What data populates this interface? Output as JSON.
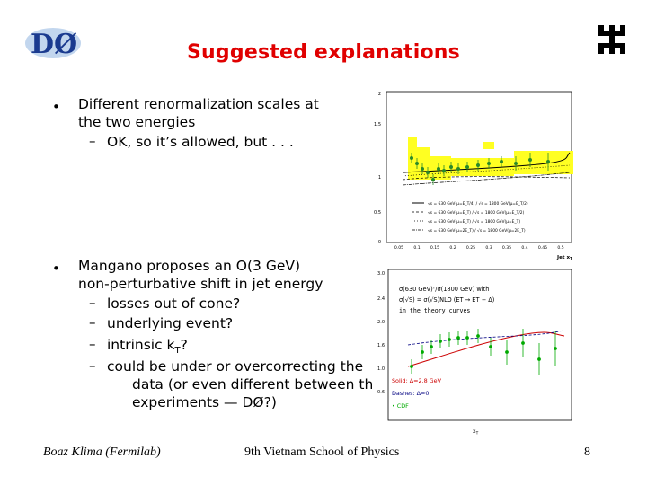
{
  "slide": {
    "title": "Suggested explanations",
    "logo_left_text": "DØ",
    "bullets": [
      {
        "line1": "Different renormalization scales at",
        "line2": "the two energies",
        "sub": [
          "OK, so it’s allowed, but . . ."
        ]
      },
      {
        "line1": "Mangano proposes an O(3 GeV)",
        "line2": "non-perturbative shift in jet energy",
        "sub": [
          "losses out of cone?",
          "underlying event?",
          "intrinsic k",
          "could be under or overcorrecting the",
          "data (or even different between the",
          "experiments — DØ?)"
        ],
        "kt_sub": "T",
        "kt_suffix": "?"
      }
    ],
    "footer": {
      "author": "Boaz Klima (Fermilab)",
      "event": "9th Vietnam School of Physics",
      "page": "8"
    },
    "dash": "–",
    "bullet_glyph": "•"
  },
  "plot1": {
    "xlabel": "Jet x",
    "xlabel_sub": "T",
    "yticks": [
      "2",
      "1.5",
      "1",
      "0.5",
      "0"
    ],
    "xticks": [
      "0.05",
      "0.1",
      "0.15",
      "0.2",
      "0.25",
      "0.3",
      "0.35",
      "0.4",
      "0.45",
      "0.5"
    ],
    "legend": [
      "√s = 630 GeV(μ=E_T/4) / √s = 1800 GeV(μ=E_T/2)",
      "√s = 630 GeV(μ=E_T) / √s = 1800 GeV(μ=E_T/2)",
      "√s = 630 GeV(μ=E_T) / √s = 1800 GeV(μ=E_T)",
      "√s = 630 GeV(μ=2E_T) / √s = 1800 GeV(μ=2E_T)"
    ],
    "colors": {
      "band": "#ffff22",
      "band_dark": "#e8e800",
      "points": "#2a8a2a"
    }
  },
  "plot2": {
    "formula1": "σ(630 GeV)ᵀ/σ(1800 GeV) with",
    "formula2": "σ(√S) = σ(√S)NLO (ET → ET − Δ)",
    "formula3": "in the theory curves",
    "yticks": [
      "3.0",
      "2.4",
      "2.0",
      "1.6",
      "1.0",
      "0.6"
    ],
    "legend_solid": "Solid: Δ=2.8 GeV",
    "legend_dashes": "Dashes: Δ=0",
    "legend_cdf": "• CDF",
    "xlabel": "x",
    "xlabel_sub": "T",
    "colors": {
      "solid": "#cc0000",
      "dashes": "#000080",
      "cdf": "#00aa00"
    }
  }
}
